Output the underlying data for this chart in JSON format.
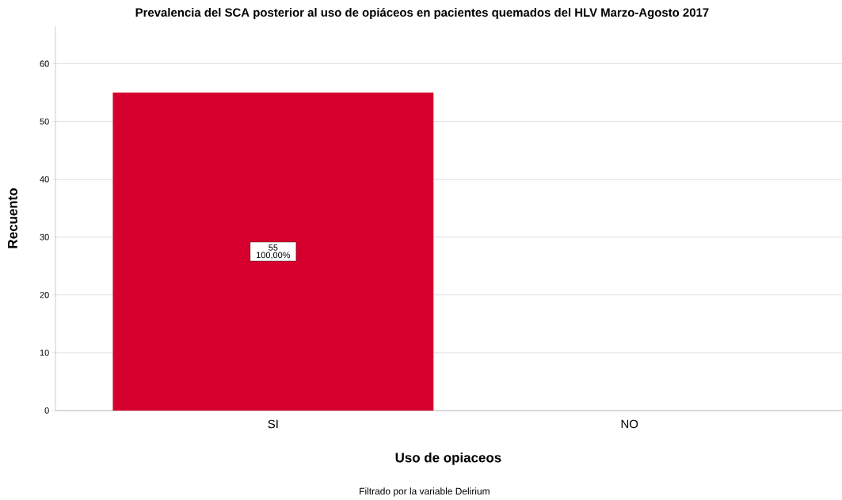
{
  "chart_data": {
    "type": "bar",
    "title": "Prevalencia del SCA posterior al uso de opiáceos en pacientes quemados del HLV Marzo-Agosto 2017",
    "xlabel": "Uso de opiaceos",
    "ylabel": "Recuento",
    "categories": [
      "SI",
      "NO"
    ],
    "values": [
      55,
      0
    ],
    "color": "#d6002e",
    "value_labels": [
      "55",
      null
    ],
    "ylim": [
      0,
      66.5
    ],
    "yticks": [
      0,
      10,
      20,
      30,
      40,
      50,
      60
    ],
    "grid": "y",
    "annotations": [
      "100,00%",
      "Filtrado por la variable Delirium"
    ]
  }
}
